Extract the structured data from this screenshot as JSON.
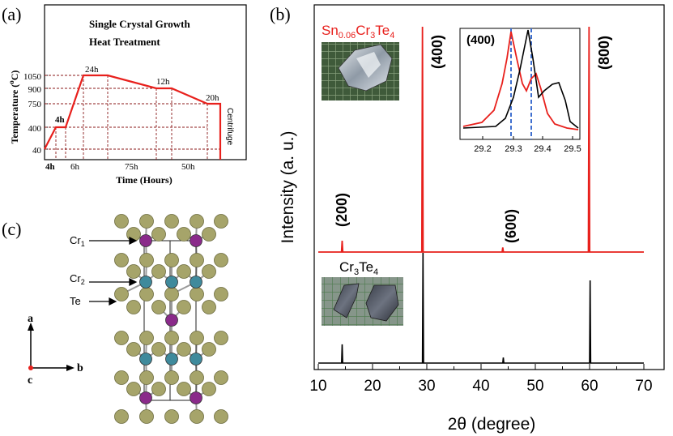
{
  "panel_labels": {
    "a": "(a)",
    "b": "(b)",
    "c": "(c)"
  },
  "heat_treatment": {
    "title_line1": "Single Crystal Growth",
    "title_line2": "Heat Treatment",
    "ylabel": "Temperature (",
    "ylabel_unit": "C)",
    "ylabel_degree": "o",
    "xlabel": "Time (Hours)",
    "centrifuge": "Centrifuge",
    "y_ticks": [
      "1050",
      "900",
      "750",
      "400",
      "40"
    ],
    "segments": [
      "4h",
      "4h",
      "6h",
      "75h",
      "50h"
    ],
    "holds": [
      "24h",
      "12h",
      "20h"
    ]
  },
  "xrd": {
    "ylabel": "Intensity (a. u.)",
    "xlabel": "2θ (degree)",
    "x_ticks": [
      "10",
      "20",
      "30",
      "40",
      "50",
      "60",
      "70"
    ],
    "doped_label": {
      "base1": "Sn",
      "sub1": "0.06",
      "base2": "Cr",
      "sub2": "3",
      "base3": "Te",
      "sub3": "4"
    },
    "pure_label": {
      "base1": "Cr",
      "sub1": "3",
      "base2": "Te",
      "sub2": "4"
    },
    "peaks": [
      "(200)",
      "(400)",
      "(600)",
      "(800)"
    ],
    "inset": {
      "label": "(400)",
      "x_ticks": [
        "29.2",
        "29.3",
        "29.4",
        "29.5"
      ]
    },
    "colors": {
      "doped": "#e8201c",
      "pure": "#000000",
      "dashed": "#3f6fcf"
    }
  },
  "chart_data": {
    "type": "line",
    "title": "",
    "xlabel": "2θ (degree)",
    "ylabel": "Intensity (a. u.)",
    "xlim": [
      10,
      70
    ],
    "series": [
      {
        "name": "Sn0.06Cr3Te4",
        "peaks_2theta": [
          14.4,
          29.2,
          44.0,
          59.9
        ],
        "relative_intensity": [
          0.05,
          1.0,
          0.02,
          1.0
        ]
      },
      {
        "name": "Cr3Te4",
        "peaks_2theta": [
          14.4,
          29.3,
          44.1,
          60.1
        ],
        "relative_intensity": [
          0.17,
          1.0,
          0.05,
          0.75
        ]
      }
    ],
    "inset": {
      "xlim": [
        29.15,
        29.52
      ],
      "peak_doped": 29.28,
      "peak_pure": 29.34
    }
  },
  "crystal": {
    "labels": [
      "Cr",
      "Cr",
      "Te"
    ],
    "subs": [
      "1",
      "2"
    ],
    "axes": {
      "a": "a",
      "b": "b",
      "c": "c"
    }
  }
}
